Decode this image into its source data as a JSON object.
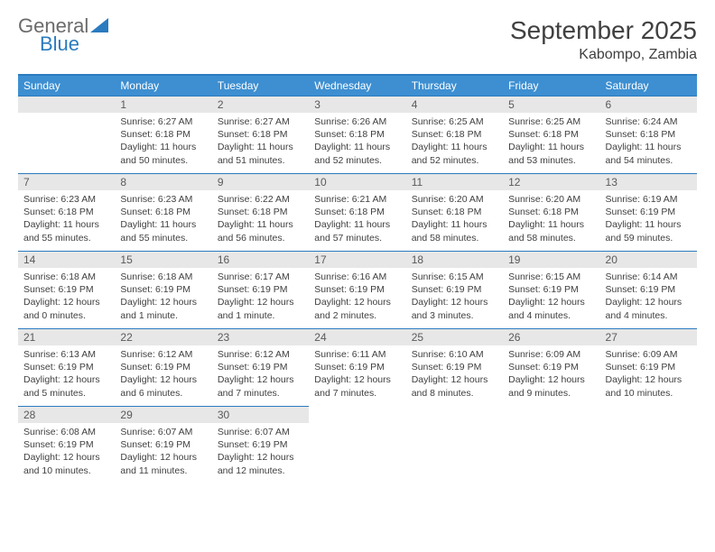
{
  "logo": {
    "word1": "General",
    "word2": "Blue"
  },
  "title": "September 2025",
  "location": "Kabompo, Zambia",
  "colors": {
    "header_bg": "#3d8fd1",
    "accent": "#2b7bbf",
    "daynum_bg": "#e7e7e7",
    "text": "#404040"
  },
  "weekdays": [
    "Sunday",
    "Monday",
    "Tuesday",
    "Wednesday",
    "Thursday",
    "Friday",
    "Saturday"
  ],
  "weeks": [
    [
      null,
      {
        "n": "1",
        "sr": "6:27 AM",
        "ss": "6:18 PM",
        "dl": "11 hours and 50 minutes."
      },
      {
        "n": "2",
        "sr": "6:27 AM",
        "ss": "6:18 PM",
        "dl": "11 hours and 51 minutes."
      },
      {
        "n": "3",
        "sr": "6:26 AM",
        "ss": "6:18 PM",
        "dl": "11 hours and 52 minutes."
      },
      {
        "n": "4",
        "sr": "6:25 AM",
        "ss": "6:18 PM",
        "dl": "11 hours and 52 minutes."
      },
      {
        "n": "5",
        "sr": "6:25 AM",
        "ss": "6:18 PM",
        "dl": "11 hours and 53 minutes."
      },
      {
        "n": "6",
        "sr": "6:24 AM",
        "ss": "6:18 PM",
        "dl": "11 hours and 54 minutes."
      }
    ],
    [
      {
        "n": "7",
        "sr": "6:23 AM",
        "ss": "6:18 PM",
        "dl": "11 hours and 55 minutes."
      },
      {
        "n": "8",
        "sr": "6:23 AM",
        "ss": "6:18 PM",
        "dl": "11 hours and 55 minutes."
      },
      {
        "n": "9",
        "sr": "6:22 AM",
        "ss": "6:18 PM",
        "dl": "11 hours and 56 minutes."
      },
      {
        "n": "10",
        "sr": "6:21 AM",
        "ss": "6:18 PM",
        "dl": "11 hours and 57 minutes."
      },
      {
        "n": "11",
        "sr": "6:20 AM",
        "ss": "6:18 PM",
        "dl": "11 hours and 58 minutes."
      },
      {
        "n": "12",
        "sr": "6:20 AM",
        "ss": "6:18 PM",
        "dl": "11 hours and 58 minutes."
      },
      {
        "n": "13",
        "sr": "6:19 AM",
        "ss": "6:19 PM",
        "dl": "11 hours and 59 minutes."
      }
    ],
    [
      {
        "n": "14",
        "sr": "6:18 AM",
        "ss": "6:19 PM",
        "dl": "12 hours and 0 minutes."
      },
      {
        "n": "15",
        "sr": "6:18 AM",
        "ss": "6:19 PM",
        "dl": "12 hours and 1 minute."
      },
      {
        "n": "16",
        "sr": "6:17 AM",
        "ss": "6:19 PM",
        "dl": "12 hours and 1 minute."
      },
      {
        "n": "17",
        "sr": "6:16 AM",
        "ss": "6:19 PM",
        "dl": "12 hours and 2 minutes."
      },
      {
        "n": "18",
        "sr": "6:15 AM",
        "ss": "6:19 PM",
        "dl": "12 hours and 3 minutes."
      },
      {
        "n": "19",
        "sr": "6:15 AM",
        "ss": "6:19 PM",
        "dl": "12 hours and 4 minutes."
      },
      {
        "n": "20",
        "sr": "6:14 AM",
        "ss": "6:19 PM",
        "dl": "12 hours and 4 minutes."
      }
    ],
    [
      {
        "n": "21",
        "sr": "6:13 AM",
        "ss": "6:19 PM",
        "dl": "12 hours and 5 minutes."
      },
      {
        "n": "22",
        "sr": "6:12 AM",
        "ss": "6:19 PM",
        "dl": "12 hours and 6 minutes."
      },
      {
        "n": "23",
        "sr": "6:12 AM",
        "ss": "6:19 PM",
        "dl": "12 hours and 7 minutes."
      },
      {
        "n": "24",
        "sr": "6:11 AM",
        "ss": "6:19 PM",
        "dl": "12 hours and 7 minutes."
      },
      {
        "n": "25",
        "sr": "6:10 AM",
        "ss": "6:19 PM",
        "dl": "12 hours and 8 minutes."
      },
      {
        "n": "26",
        "sr": "6:09 AM",
        "ss": "6:19 PM",
        "dl": "12 hours and 9 minutes."
      },
      {
        "n": "27",
        "sr": "6:09 AM",
        "ss": "6:19 PM",
        "dl": "12 hours and 10 minutes."
      }
    ],
    [
      {
        "n": "28",
        "sr": "6:08 AM",
        "ss": "6:19 PM",
        "dl": "12 hours and 10 minutes."
      },
      {
        "n": "29",
        "sr": "6:07 AM",
        "ss": "6:19 PM",
        "dl": "12 hours and 11 minutes."
      },
      {
        "n": "30",
        "sr": "6:07 AM",
        "ss": "6:19 PM",
        "dl": "12 hours and 12 minutes."
      },
      null,
      null,
      null,
      null
    ]
  ],
  "labels": {
    "sunrise": "Sunrise:",
    "sunset": "Sunset:",
    "daylight": "Daylight:"
  }
}
